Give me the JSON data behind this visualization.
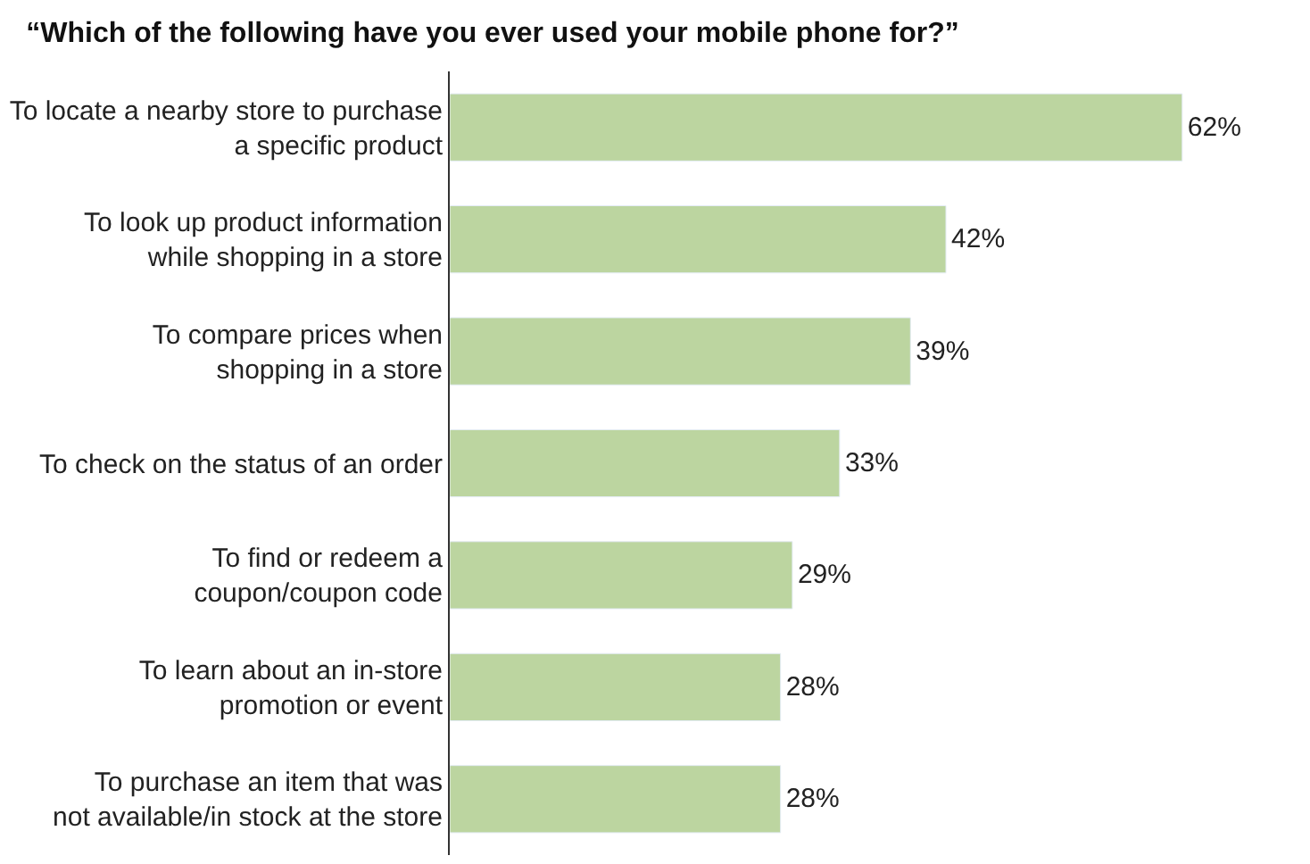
{
  "chart_data": {
    "type": "bar",
    "orientation": "horizontal",
    "title": "“Which of the following have you ever used your mobile phone for?”",
    "categories": [
      "To locate a nearby store to purchase\na specific product",
      "To look up product information\nwhile shopping in a store",
      "To compare prices when\nshopping in a store",
      "To check on the status of an order",
      "To find or redeem a\ncoupon/coupon code",
      "To learn about an in-store\npromotion or event",
      "To purchase an item that was\nnot available/in stock at the store"
    ],
    "values": [
      62,
      42,
      39,
      33,
      29,
      28,
      28
    ],
    "value_labels": [
      "62%",
      "42%",
      "39%",
      "33%",
      "29%",
      "28%",
      "28%"
    ],
    "color": "#bcd5a0",
    "tick_labels": "y"
  }
}
